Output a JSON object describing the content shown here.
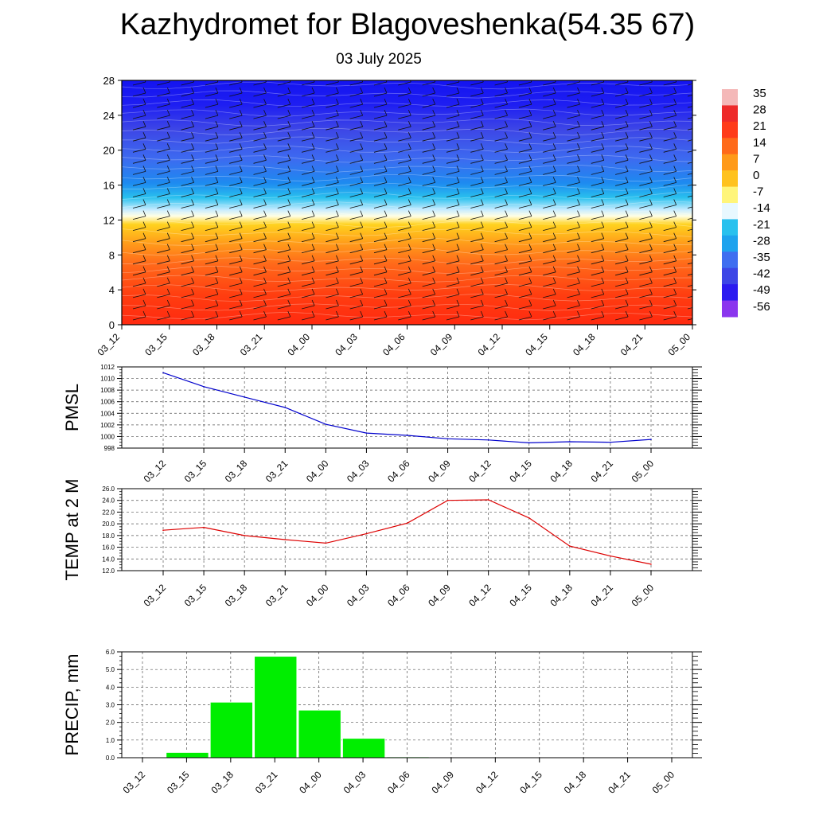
{
  "title": "Kazhydromet for Blagoveshenka(54.35 67)",
  "subtitle": "03 July 2025",
  "time_labels": [
    "03_12",
    "03_15",
    "03_18",
    "03_21",
    "04_00",
    "04_03",
    "04_06",
    "04_09",
    "04_12",
    "04_15",
    "04_18",
    "04_21",
    "05_00"
  ],
  "chart_data": [
    {
      "type": "heatmap",
      "title": "",
      "ylabel": "",
      "ylim": [
        0,
        28
      ],
      "y_ticks": [
        "0",
        "4",
        "8",
        "12",
        "16",
        "20",
        "24",
        "28"
      ],
      "x": [
        "03_12",
        "03_15",
        "03_18",
        "03_21",
        "04_00",
        "04_03",
        "04_06",
        "04_09",
        "04_12",
        "04_15",
        "04_18",
        "04_21",
        "05_00"
      ],
      "legend": {
        "placement": "right",
        "labels": [
          "35",
          "28",
          "21",
          "14",
          "7",
          "0",
          "-7",
          "-14",
          "-21",
          "-28",
          "-35",
          "-42",
          "-49",
          "-56"
        ],
        "colors": [
          "#f4b8b8",
          "#ee2a2a",
          "#ff3b1a",
          "#ff6a1a",
          "#ff9a1a",
          "#ffc21e",
          "#fff57a",
          "#e8f8ff",
          "#29c1ee",
          "#1ea3ee",
          "#3f6ef0",
          "#3d46e6",
          "#2b1bf0",
          "#8b35ee"
        ]
      },
      "wind_barbs": true
    },
    {
      "type": "line",
      "ylabel": "PMSL",
      "ylim": [
        998,
        1012
      ],
      "y_ticks": [
        "998",
        "1000",
        "1002",
        "1004",
        "1006",
        "1008",
        "1010",
        "1012"
      ],
      "grid": true,
      "series": [
        {
          "values": [
            1011,
            1008.6,
            1006.8,
            1005,
            1002.1,
            1000.6,
            1000.2,
            999.6,
            999.4,
            998.9,
            999.1,
            999,
            999.5
          ],
          "color": "#0000cc"
        }
      ]
    },
    {
      "type": "line",
      "ylabel": "TEMP at 2 M",
      "ylim": [
        12,
        26
      ],
      "y_ticks": [
        "12.0",
        "14.0",
        "16.0",
        "18.0",
        "20.0",
        "22.0",
        "24.0",
        "26.0"
      ],
      "grid": true,
      "series": [
        {
          "values": [
            18.9,
            19.4,
            18,
            17.3,
            16.7,
            18.3,
            20.1,
            24,
            24.1,
            21,
            16.2,
            14.5,
            13.1
          ],
          "color": "#dd0000"
        }
      ]
    },
    {
      "type": "bar",
      "ylabel": "PRECIP, mm",
      "ylim": [
        0,
        6
      ],
      "y_ticks": [
        "0.0",
        "1.0",
        "2.0",
        "3.0",
        "4.0",
        "5.0",
        "6.0"
      ],
      "grid": true,
      "bar_color": "#00ee00",
      "values": [
        0,
        0.3,
        3.15,
        5.75,
        2.7,
        1.1,
        0.05,
        0,
        0,
        0,
        0,
        0,
        0
      ]
    }
  ]
}
